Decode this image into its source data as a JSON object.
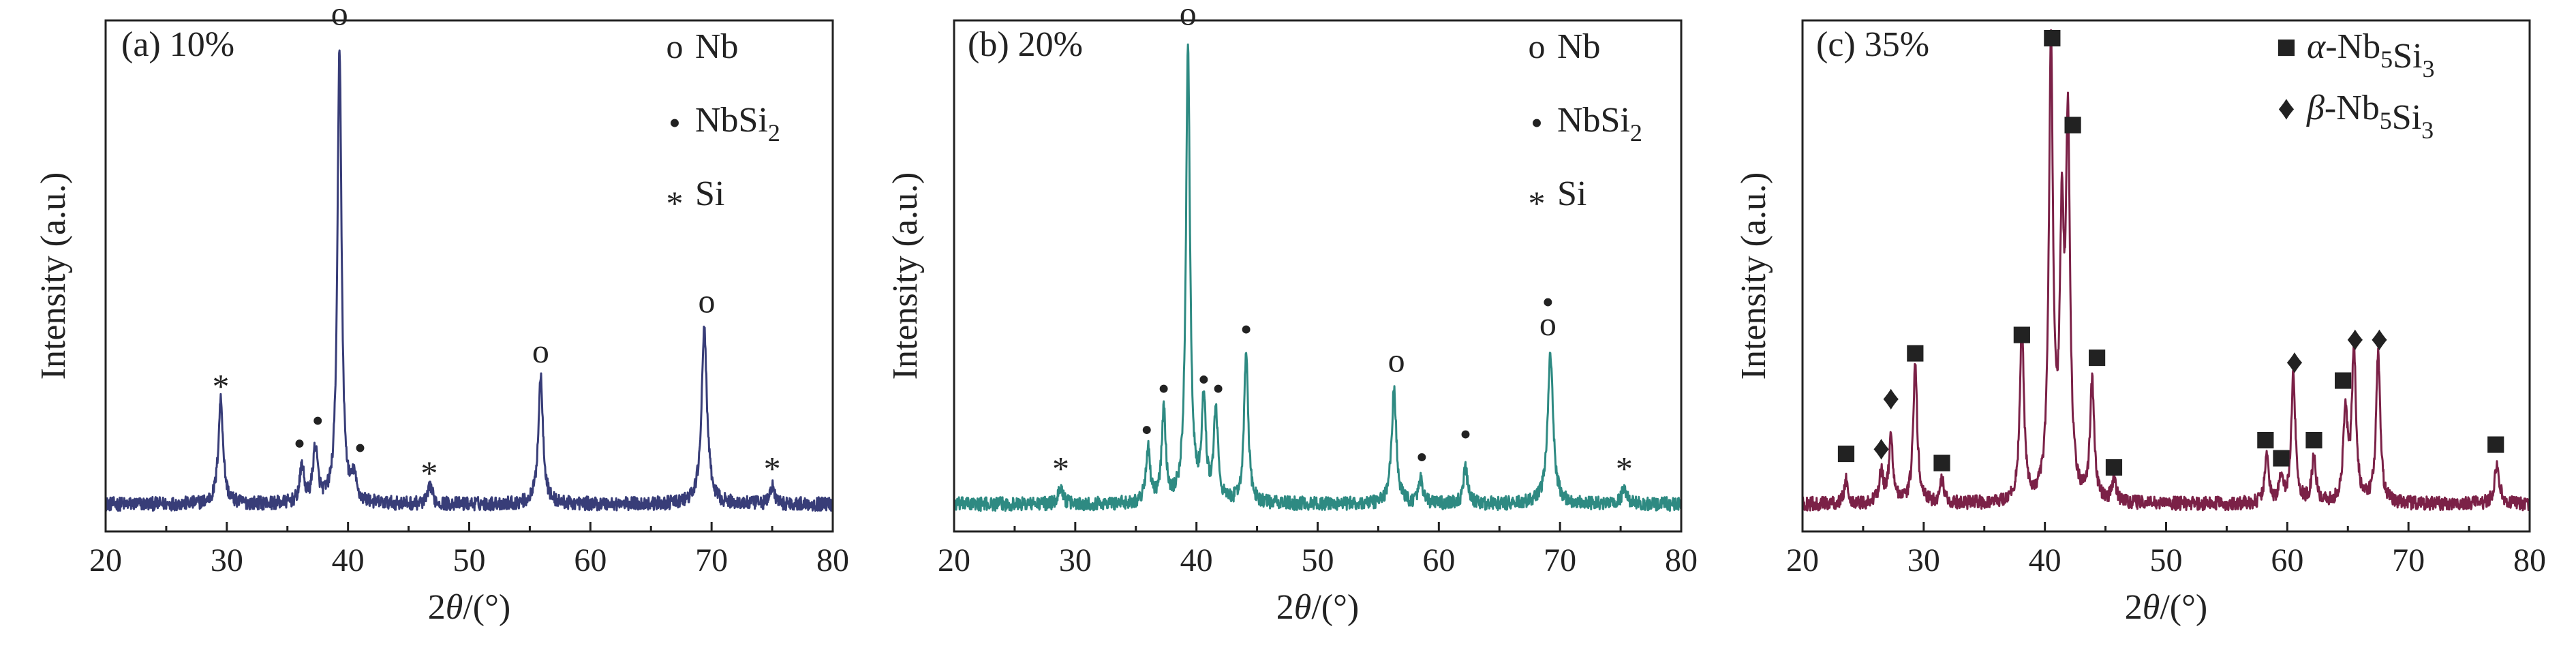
{
  "chart_data": [
    {
      "type": "line",
      "panel_label": "(a) 10%",
      "xlabel": "2θ/(°)",
      "ylabel": "Intensity (a.u.)",
      "xlim": [
        20,
        80
      ],
      "xticks": [
        20,
        30,
        40,
        50,
        60,
        70,
        80
      ],
      "xtick_labels": [
        "20",
        "30",
        "40",
        "50",
        "60",
        "70",
        "80"
      ],
      "ylim": [
        0,
        1
      ],
      "color": "#383d78",
      "baseline": 0.03,
      "peaks": [
        {
          "x": 29.5,
          "y": 0.23,
          "w": 0.35
        },
        {
          "x": 36.2,
          "y": 0.08,
          "w": 0.3
        },
        {
          "x": 37.3,
          "y": 0.12,
          "w": 0.35
        },
        {
          "x": 39.3,
          "y": 1.0,
          "w": 0.3
        },
        {
          "x": 40.5,
          "y": 0.05,
          "w": 0.3
        },
        {
          "x": 46.8,
          "y": 0.04,
          "w": 0.3
        },
        {
          "x": 55.9,
          "y": 0.28,
          "w": 0.35
        },
        {
          "x": 69.4,
          "y": 0.38,
          "w": 0.4
        },
        {
          "x": 75.0,
          "y": 0.04,
          "w": 0.3
        }
      ],
      "annotations": [
        {
          "x": 29.5,
          "y": 0.29,
          "symbol": "*"
        },
        {
          "x": 36.0,
          "y": 0.15,
          "symbol": "•"
        },
        {
          "x": 37.5,
          "y": 0.2,
          "symbol": "•"
        },
        {
          "x": 39.3,
          "y": 1.08,
          "symbol": "o"
        },
        {
          "x": 41.0,
          "y": 0.14,
          "symbol": "•"
        },
        {
          "x": 46.7,
          "y": 0.1,
          "symbol": "*"
        },
        {
          "x": 55.9,
          "y": 0.34,
          "symbol": "o"
        },
        {
          "x": 69.6,
          "y": 0.45,
          "symbol": "o"
        },
        {
          "x": 75.0,
          "y": 0.11,
          "symbol": "*"
        }
      ],
      "legend": [
        {
          "symbol": "o",
          "label": "Nb"
        },
        {
          "symbol": "•",
          "label": "NbSi",
          "sub": "2"
        },
        {
          "symbol": "*",
          "label": "Si"
        }
      ]
    },
    {
      "type": "line",
      "panel_label": "(b) 20%",
      "xlabel": "2θ/(°)",
      "ylabel": "Intensity (a.u.)",
      "xlim": [
        20,
        80
      ],
      "xticks": [
        20,
        30,
        40,
        50,
        60,
        70,
        80
      ],
      "xtick_labels": [
        "20",
        "30",
        "40",
        "50",
        "60",
        "70",
        "80"
      ],
      "ylim": [
        0,
        1
      ],
      "color": "#2e8a82",
      "baseline": 0.03,
      "peaks": [
        {
          "x": 28.8,
          "y": 0.04,
          "w": 0.3
        },
        {
          "x": 36.0,
          "y": 0.12,
          "w": 0.3
        },
        {
          "x": 37.3,
          "y": 0.2,
          "w": 0.3
        },
        {
          "x": 39.3,
          "y": 1.0,
          "w": 0.3
        },
        {
          "x": 40.6,
          "y": 0.22,
          "w": 0.3
        },
        {
          "x": 41.6,
          "y": 0.2,
          "w": 0.3
        },
        {
          "x": 44.1,
          "y": 0.33,
          "w": 0.3
        },
        {
          "x": 56.3,
          "y": 0.25,
          "w": 0.35
        },
        {
          "x": 58.5,
          "y": 0.05,
          "w": 0.3
        },
        {
          "x": 62.2,
          "y": 0.08,
          "w": 0.3
        },
        {
          "x": 69.2,
          "y": 0.33,
          "w": 0.4
        },
        {
          "x": 75.3,
          "y": 0.04,
          "w": 0.3
        }
      ],
      "annotations": [
        {
          "x": 28.8,
          "y": 0.11,
          "symbol": "*"
        },
        {
          "x": 35.9,
          "y": 0.18,
          "symbol": "•"
        },
        {
          "x": 37.3,
          "y": 0.27,
          "symbol": "•"
        },
        {
          "x": 39.3,
          "y": 1.08,
          "symbol": "o"
        },
        {
          "x": 40.6,
          "y": 0.29,
          "symbol": "•"
        },
        {
          "x": 41.8,
          "y": 0.27,
          "symbol": "•"
        },
        {
          "x": 44.1,
          "y": 0.4,
          "symbol": "•"
        },
        {
          "x": 56.5,
          "y": 0.32,
          "symbol": "o"
        },
        {
          "x": 58.6,
          "y": 0.12,
          "symbol": "•"
        },
        {
          "x": 62.2,
          "y": 0.17,
          "symbol": "•"
        },
        {
          "x": 69.0,
          "y": 0.46,
          "symbol": "•"
        },
        {
          "x": 69.0,
          "y": 0.4,
          "symbol": "o"
        },
        {
          "x": 75.3,
          "y": 0.11,
          "symbol": "*"
        }
      ],
      "legend": [
        {
          "symbol": "o",
          "label": "Nb"
        },
        {
          "symbol": "•",
          "label": "NbSi",
          "sub": "2"
        },
        {
          "symbol": "*",
          "label": "Si"
        }
      ]
    },
    {
      "type": "line",
      "panel_label": "(c) 35%",
      "xlabel": "2θ/(°)",
      "ylabel": "Intensity (a.u.)",
      "xlim": [
        20,
        80
      ],
      "xticks": [
        20,
        30,
        40,
        50,
        60,
        70,
        80
      ],
      "xtick_labels": [
        "20",
        "30",
        "40",
        "50",
        "60",
        "70",
        "80"
      ],
      "ylim": [
        0,
        1
      ],
      "color": "#7b2147",
      "baseline": 0.03,
      "peaks": [
        {
          "x": 23.6,
          "y": 0.05,
          "w": 0.3
        },
        {
          "x": 26.5,
          "y": 0.07,
          "w": 0.3
        },
        {
          "x": 27.3,
          "y": 0.14,
          "w": 0.3
        },
        {
          "x": 29.3,
          "y": 0.3,
          "w": 0.3
        },
        {
          "x": 31.5,
          "y": 0.05,
          "w": 0.3
        },
        {
          "x": 38.1,
          "y": 0.38,
          "w": 0.3
        },
        {
          "x": 40.5,
          "y": 1.0,
          "w": 0.3
        },
        {
          "x": 41.4,
          "y": 0.55,
          "w": 0.3
        },
        {
          "x": 41.9,
          "y": 0.8,
          "w": 0.3
        },
        {
          "x": 43.9,
          "y": 0.26,
          "w": 0.3
        },
        {
          "x": 45.7,
          "y": 0.05,
          "w": 0.3
        },
        {
          "x": 58.3,
          "y": 0.1,
          "w": 0.3
        },
        {
          "x": 59.5,
          "y": 0.05,
          "w": 0.3
        },
        {
          "x": 60.5,
          "y": 0.28,
          "w": 0.3
        },
        {
          "x": 62.2,
          "y": 0.1,
          "w": 0.3
        },
        {
          "x": 64.8,
          "y": 0.2,
          "w": 0.3
        },
        {
          "x": 65.5,
          "y": 0.34,
          "w": 0.3
        },
        {
          "x": 67.5,
          "y": 0.33,
          "w": 0.3
        },
        {
          "x": 77.3,
          "y": 0.09,
          "w": 0.35
        }
      ],
      "annotations": [
        {
          "x": 23.6,
          "y": 0.13,
          "symbol": "■"
        },
        {
          "x": 26.5,
          "y": 0.14,
          "symbol": "♦"
        },
        {
          "x": 27.3,
          "y": 0.25,
          "symbol": "♦"
        },
        {
          "x": 29.3,
          "y": 0.35,
          "symbol": "■"
        },
        {
          "x": 31.5,
          "y": 0.11,
          "symbol": "■"
        },
        {
          "x": 38.1,
          "y": 0.39,
          "symbol": "■"
        },
        {
          "x": 40.6,
          "y": 1.04,
          "symbol": "■"
        },
        {
          "x": 42.3,
          "y": 0.85,
          "symbol": "■"
        },
        {
          "x": 44.3,
          "y": 0.34,
          "symbol": "■"
        },
        {
          "x": 45.7,
          "y": 0.1,
          "symbol": "■"
        },
        {
          "x": 58.2,
          "y": 0.16,
          "symbol": "■"
        },
        {
          "x": 59.5,
          "y": 0.12,
          "symbol": "■"
        },
        {
          "x": 60.6,
          "y": 0.33,
          "symbol": "♦"
        },
        {
          "x": 62.2,
          "y": 0.16,
          "symbol": "■"
        },
        {
          "x": 64.6,
          "y": 0.29,
          "symbol": "■"
        },
        {
          "x": 65.6,
          "y": 0.38,
          "symbol": "♦"
        },
        {
          "x": 67.6,
          "y": 0.38,
          "symbol": "♦"
        },
        {
          "x": 77.2,
          "y": 0.15,
          "symbol": "■"
        }
      ],
      "legend": [
        {
          "symbol": "■",
          "label": "α-Nb",
          "sub": "5",
          "label2": "Si",
          "sub2": "3"
        },
        {
          "symbol": "♦",
          "label": "β-Nb",
          "sub": "5",
          "label2": "Si",
          "sub2": "3"
        }
      ]
    }
  ]
}
